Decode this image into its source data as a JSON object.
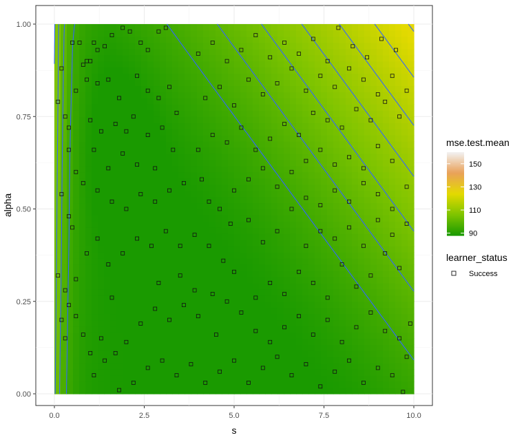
{
  "chart_data": {
    "type": "heatmap",
    "xlabel": "s",
    "ylabel": "alpha",
    "xlim": [
      0,
      10
    ],
    "ylim": [
      0,
      1
    ],
    "x_ticks": [
      "0.0",
      "2.5",
      "5.0",
      "7.5",
      "10.0"
    ],
    "x_tick_values": [
      0,
      2.5,
      5,
      7.5,
      10
    ],
    "y_ticks": [
      "0.00",
      "0.25",
      "0.50",
      "0.75",
      "1.00"
    ],
    "y_tick_values": [
      0,
      0.25,
      0.5,
      0.75,
      1
    ],
    "grid": true,
    "fill": {
      "name": "mse.test.mean",
      "range": [
        88,
        160
      ],
      "legend_breaks": [
        "150",
        "130",
        "110",
        "90"
      ],
      "legend_break_values": [
        150,
        130,
        110,
        90
      ],
      "colors": {
        "low": "#1a9a00",
        "mid_low": "#7fc400",
        "mid": "#e4da00",
        "mid_high": "#e9a15a",
        "high": "#f2f2f2"
      }
    },
    "contour_color": "#3366ff",
    "point_layer": {
      "name": "learner_status",
      "legend_entries": [
        "Success"
      ],
      "shape": "open-square",
      "points": [
        [
          0.1,
          0.79
        ],
        [
          0.2,
          0.88
        ],
        [
          0.3,
          0.75
        ],
        [
          0.4,
          0.72
        ],
        [
          0.5,
          0.95
        ],
        [
          0.7,
          0.95
        ],
        [
          0.6,
          0.82
        ],
        [
          0.8,
          0.89
        ],
        [
          0.9,
          0.9
        ],
        [
          1.0,
          0.9
        ],
        [
          1.1,
          0.95
        ],
        [
          1.2,
          0.93
        ],
        [
          1.4,
          0.94
        ],
        [
          1.6,
          0.97
        ],
        [
          1.9,
          0.99
        ],
        [
          2.1,
          0.98
        ],
        [
          2.4,
          0.95
        ],
        [
          2.6,
          0.93
        ],
        [
          2.9,
          0.98
        ],
        [
          3.1,
          0.99
        ],
        [
          0.9,
          0.85
        ],
        [
          1.2,
          0.84
        ],
        [
          1.5,
          0.85
        ],
        [
          1.8,
          0.8
        ],
        [
          2.3,
          0.86
        ],
        [
          2.6,
          0.82
        ],
        [
          2.9,
          0.8
        ],
        [
          3.2,
          0.83
        ],
        [
          1.0,
          0.74
        ],
        [
          1.3,
          0.71
        ],
        [
          1.7,
          0.73
        ],
        [
          2.0,
          0.71
        ],
        [
          2.2,
          0.75
        ],
        [
          2.6,
          0.7
        ],
        [
          3.0,
          0.72
        ],
        [
          3.4,
          0.76
        ],
        [
          1.1,
          0.66
        ],
        [
          1.5,
          0.61
        ],
        [
          1.9,
          0.65
        ],
        [
          2.3,
          0.62
        ],
        [
          2.8,
          0.61
        ],
        [
          3.3,
          0.66
        ],
        [
          0.4,
          0.66
        ],
        [
          0.6,
          0.6
        ],
        [
          0.2,
          0.54
        ],
        [
          0.4,
          0.48
        ],
        [
          0.5,
          0.45
        ],
        [
          0.8,
          0.57
        ],
        [
          1.2,
          0.55
        ],
        [
          1.6,
          0.52
        ],
        [
          2.0,
          0.5
        ],
        [
          2.4,
          0.54
        ],
        [
          2.8,
          0.52
        ],
        [
          3.2,
          0.55
        ],
        [
          3.6,
          0.57
        ],
        [
          4.1,
          0.58
        ],
        [
          4.3,
          0.52
        ],
        [
          4.6,
          0.5
        ],
        [
          4.9,
          0.46
        ],
        [
          0.1,
          0.32
        ],
        [
          0.3,
          0.28
        ],
        [
          0.4,
          0.24
        ],
        [
          0.6,
          0.31
        ],
        [
          0.9,
          0.38
        ],
        [
          1.2,
          0.42
        ],
        [
          1.5,
          0.35
        ],
        [
          1.9,
          0.38
        ],
        [
          2.3,
          0.42
        ],
        [
          2.7,
          0.4
        ],
        [
          3.1,
          0.44
        ],
        [
          3.5,
          0.4
        ],
        [
          3.9,
          0.43
        ],
        [
          4.3,
          0.4
        ],
        [
          4.7,
          0.36
        ],
        [
          5.0,
          0.33
        ],
        [
          0.2,
          0.2
        ],
        [
          0.3,
          0.15
        ],
        [
          0.6,
          0.21
        ],
        [
          0.8,
          0.16
        ],
        [
          1.0,
          0.11
        ],
        [
          1.3,
          0.15
        ],
        [
          1.7,
          0.11
        ],
        [
          2.0,
          0.14
        ],
        [
          2.4,
          0.19
        ],
        [
          2.8,
          0.23
        ],
        [
          3.2,
          0.2
        ],
        [
          3.6,
          0.24
        ],
        [
          4.0,
          0.21
        ],
        [
          4.4,
          0.27
        ],
        [
          4.8,
          0.25
        ],
        [
          5.2,
          0.22
        ],
        [
          1.1,
          0.05
        ],
        [
          1.4,
          0.09
        ],
        [
          1.8,
          0.01
        ],
        [
          2.2,
          0.03
        ],
        [
          2.6,
          0.07
        ],
        [
          3.0,
          0.09
        ],
        [
          3.4,
          0.05
        ],
        [
          3.8,
          0.08
        ],
        [
          4.2,
          0.03
        ],
        [
          4.6,
          0.06
        ],
        [
          5.0,
          0.09
        ],
        [
          5.4,
          0.03
        ],
        [
          5.8,
          0.07
        ],
        [
          6.2,
          0.1
        ],
        [
          6.6,
          0.05
        ],
        [
          7.0,
          0.08
        ],
        [
          7.4,
          0.02
        ],
        [
          7.8,
          0.06
        ],
        [
          8.2,
          0.09
        ],
        [
          8.6,
          0.03
        ],
        [
          9.0,
          0.07
        ],
        [
          9.4,
          0.05
        ],
        [
          9.8,
          0.1
        ],
        [
          9.7,
          0.005
        ],
        [
          5.6,
          0.17
        ],
        [
          6.0,
          0.14
        ],
        [
          6.4,
          0.18
        ],
        [
          6.8,
          0.21
        ],
        [
          7.2,
          0.16
        ],
        [
          7.6,
          0.2
        ],
        [
          8.0,
          0.14
        ],
        [
          8.4,
          0.18
        ],
        [
          8.8,
          0.22
        ],
        [
          9.2,
          0.17
        ],
        [
          9.6,
          0.15
        ],
        [
          9.9,
          0.19
        ],
        [
          6.0,
          0.3
        ],
        [
          6.4,
          0.27
        ],
        [
          6.8,
          0.33
        ],
        [
          7.2,
          0.3
        ],
        [
          7.6,
          0.26
        ],
        [
          8.0,
          0.35
        ],
        [
          8.4,
          0.29
        ],
        [
          8.8,
          0.32
        ],
        [
          9.2,
          0.38
        ],
        [
          9.6,
          0.34
        ],
        [
          7.0,
          0.4
        ],
        [
          7.4,
          0.44
        ],
        [
          7.8,
          0.42
        ],
        [
          8.2,
          0.45
        ],
        [
          8.6,
          0.4
        ],
        [
          9.0,
          0.47
        ],
        [
          9.4,
          0.43
        ],
        [
          9.8,
          0.46
        ],
        [
          6.6,
          0.5
        ],
        [
          7.0,
          0.53
        ],
        [
          7.4,
          0.51
        ],
        [
          7.8,
          0.55
        ],
        [
          8.2,
          0.52
        ],
        [
          8.6,
          0.57
        ],
        [
          9.0,
          0.54
        ],
        [
          9.4,
          0.5
        ],
        [
          9.8,
          0.56
        ],
        [
          5.4,
          0.47
        ],
        [
          5.8,
          0.41
        ],
        [
          6.2,
          0.44
        ],
        [
          5.0,
          0.55
        ],
        [
          5.4,
          0.58
        ],
        [
          5.8,
          0.61
        ],
        [
          6.2,
          0.56
        ],
        [
          6.6,
          0.6
        ],
        [
          7.0,
          0.63
        ],
        [
          7.4,
          0.66
        ],
        [
          7.8,
          0.62
        ],
        [
          8.2,
          0.64
        ],
        [
          8.6,
          0.61
        ],
        [
          9.0,
          0.67
        ],
        [
          9.4,
          0.63
        ],
        [
          4.0,
          0.66
        ],
        [
          4.4,
          0.7
        ],
        [
          4.8,
          0.68
        ],
        [
          5.2,
          0.72
        ],
        [
          5.6,
          0.66
        ],
        [
          6.0,
          0.69
        ],
        [
          6.4,
          0.73
        ],
        [
          6.8,
          0.7
        ],
        [
          7.2,
          0.76
        ],
        [
          7.6,
          0.74
        ],
        [
          8.0,
          0.72
        ],
        [
          8.4,
          0.77
        ],
        [
          8.8,
          0.74
        ],
        [
          9.2,
          0.79
        ],
        [
          9.6,
          0.75
        ],
        [
          4.2,
          0.8
        ],
        [
          4.6,
          0.83
        ],
        [
          5.0,
          0.78
        ],
        [
          5.4,
          0.85
        ],
        [
          5.8,
          0.81
        ],
        [
          6.2,
          0.84
        ],
        [
          6.6,
          0.88
        ],
        [
          7.0,
          0.82
        ],
        [
          7.4,
          0.86
        ],
        [
          7.8,
          0.83
        ],
        [
          8.2,
          0.88
        ],
        [
          8.6,
          0.85
        ],
        [
          9.0,
          0.81
        ],
        [
          9.4,
          0.86
        ],
        [
          9.8,
          0.82
        ],
        [
          4.0,
          0.92
        ],
        [
          4.4,
          0.95
        ],
        [
          4.8,
          0.9
        ],
        [
          5.2,
          0.93
        ],
        [
          5.6,
          0.97
        ],
        [
          6.0,
          0.91
        ],
        [
          6.4,
          0.95
        ],
        [
          6.8,
          0.92
        ],
        [
          7.2,
          0.96
        ],
        [
          7.6,
          0.9
        ],
        [
          7.9,
          0.99
        ],
        [
          8.3,
          0.94
        ],
        [
          8.7,
          0.91
        ],
        [
          9.1,
          0.96
        ],
        [
          9.5,
          0.93
        ],
        [
          3.5,
          0.32
        ],
        [
          3.9,
          0.28
        ],
        [
          4.5,
          0.16
        ],
        [
          5.6,
          0.26
        ],
        [
          2.9,
          0.3
        ],
        [
          1.6,
          0.26
        ]
      ]
    }
  }
}
